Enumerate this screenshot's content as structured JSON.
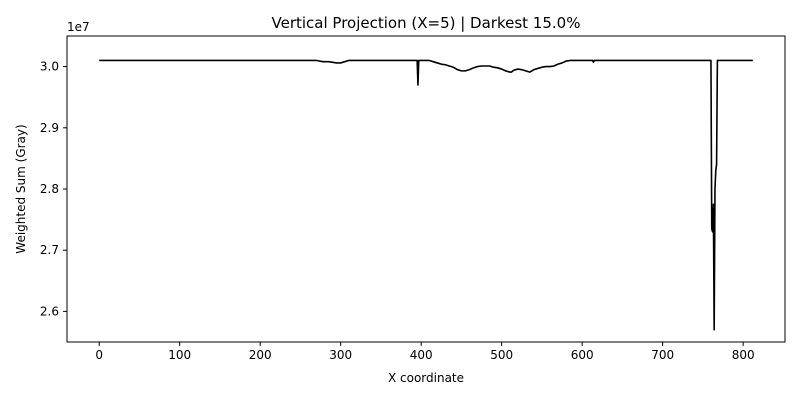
{
  "chart_data": {
    "type": "line",
    "title": "Vertical Projection (X=5) | Darkest 15.0%",
    "xlabel": "X coordinate",
    "ylabel": "Weighted Sum (Gray)",
    "y_offset_label": "1e7",
    "y_scale": 10000000,
    "xlim": [
      -40,
      852
    ],
    "ylim": [
      25500000,
      30500000
    ],
    "x_ticks": [
      0,
      100,
      200,
      300,
      400,
      500,
      600,
      700,
      800
    ],
    "x_tick_labels": [
      "0",
      "100",
      "200",
      "300",
      "400",
      "500",
      "600",
      "700",
      "800"
    ],
    "y_ticks": [
      26000000,
      27000000,
      28000000,
      29000000,
      30000000
    ],
    "y_tick_labels": [
      "2.6",
      "2.7",
      "2.8",
      "2.9",
      "3.0"
    ],
    "grid": false,
    "series": [
      {
        "color": "#000000",
        "x": [
          0,
          100,
          200,
          270,
          278,
          285,
          290,
          295,
          300,
          305,
          310,
          320,
          350,
          390,
          395,
          396,
          397,
          398,
          400,
          410,
          415,
          420,
          425,
          430,
          435,
          440,
          445,
          450,
          455,
          460,
          465,
          470,
          475,
          480,
          485,
          490,
          495,
          500,
          505,
          510,
          512,
          515,
          520,
          525,
          530,
          535,
          540,
          545,
          550,
          555,
          560,
          565,
          570,
          575,
          580,
          585,
          590,
          600,
          610,
          613,
          614,
          615,
          620,
          700,
          758,
          760,
          761,
          762,
          763,
          764,
          765,
          766,
          767,
          768,
          770,
          772,
          775,
          800,
          812
        ],
        "y": [
          30100000,
          30100000,
          30100000,
          30100000,
          30080000,
          30080000,
          30070000,
          30060000,
          30060000,
          30080000,
          30100000,
          30100000,
          30100000,
          30100000,
          30100000,
          29700000,
          30100000,
          30100000,
          30100000,
          30100000,
          30080000,
          30060000,
          30040000,
          30030000,
          30010000,
          29990000,
          29950000,
          29930000,
          29930000,
          29950000,
          29980000,
          30000000,
          30010000,
          30010000,
          30010000,
          29990000,
          29980000,
          29960000,
          29930000,
          29910000,
          29910000,
          29940000,
          29960000,
          29950000,
          29930000,
          29910000,
          29950000,
          29970000,
          29990000,
          30000000,
          30000000,
          30010000,
          30040000,
          30060000,
          30090000,
          30100000,
          30100000,
          30100000,
          30100000,
          30100000,
          30070000,
          30100000,
          30100000,
          30100000,
          30100000,
          30100000,
          27350000,
          27300000,
          27750000,
          25700000,
          28000000,
          28300000,
          28400000,
          30100000,
          30100000,
          30100000,
          30100000,
          30100000,
          30100000
        ]
      }
    ]
  }
}
